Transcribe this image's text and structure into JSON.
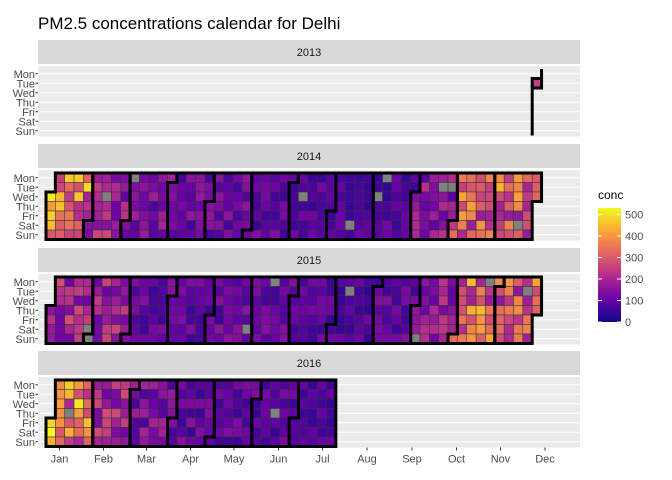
{
  "chart_data": {
    "type": "heatmap",
    "title": "PM2.5 concentrations calendar for Delhi",
    "weekday_labels": [
      "Mon",
      "Tue",
      "Wed",
      "Thu",
      "Fri",
      "Sat",
      "Sun"
    ],
    "month_labels": [
      "Jan",
      "Feb",
      "Mar",
      "Apr",
      "May",
      "Jun",
      "Jul",
      "Aug",
      "Sep",
      "Oct",
      "Nov",
      "Dec"
    ],
    "legend": {
      "title": "conc",
      "ticks": [
        0,
        100,
        200,
        300,
        400,
        500
      ],
      "range": [
        0,
        530
      ],
      "palette": [
        "#0d0887",
        "#6a00a8",
        "#b12a90",
        "#e16462",
        "#fca636",
        "#f0f921"
      ]
    },
    "missing_color": "#808080",
    "panels": [
      {
        "year": "2013",
        "start": "2013-12-31",
        "end": "2013-12-31",
        "monthly_mean": [
          null,
          null,
          null,
          null,
          null,
          null,
          null,
          null,
          null,
          null,
          null,
          300
        ]
      },
      {
        "year": "2014",
        "start": "2014-01-01",
        "end": "2014-12-31",
        "monthly_mean": [
          340,
          180,
          130,
          110,
          110,
          95,
          85,
          75,
          80,
          150,
          290,
          300
        ]
      },
      {
        "year": "2015",
        "start": "2015-01-01",
        "end": "2015-12-31",
        "monthly_mean": [
          200,
          180,
          100,
          95,
          110,
          100,
          85,
          80,
          100,
          160,
          300,
          280
        ]
      },
      {
        "year": "2016",
        "start": "2016-01-01",
        "end": "2016-07-31",
        "monthly_mean": [
          360,
          200,
          130,
          100,
          95,
          90,
          75,
          null,
          null,
          null,
          null,
          null
        ]
      }
    ]
  }
}
